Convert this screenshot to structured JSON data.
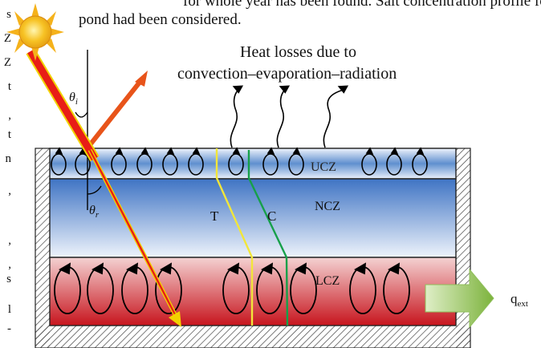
{
  "top_text": {
    "line1": "for whole year has been found. Salt concentration profile for",
    "line2": "pond had been considered."
  },
  "heat_losses": {
    "line1": "Heat losses due to",
    "line2": "convection–evaporation–radiation"
  },
  "zones": {
    "upper": "UCZ",
    "middle": "NCZ",
    "lower": "LCZ"
  },
  "profiles": {
    "temperature": "T",
    "concentration": "C"
  },
  "angles": {
    "incident": "θ",
    "incident_sub": "i",
    "refracted": "θ",
    "refracted_sub": "r"
  },
  "external_heat": {
    "symbol": "q",
    "subscript": "ext"
  },
  "left_margin_fragments": [
    "s",
    "Z",
    "Z",
    "t",
    ",",
    "t",
    "n",
    ",",
    ",",
    ",",
    "s",
    "l",
    "-"
  ],
  "colors": {
    "ucz": "#5f8fcf",
    "ncz_top": "#3f74c4",
    "ncz_bottom": "#eef3fb",
    "lcz_top": "#f4d2d2",
    "lcz_bottom": "#c7141d",
    "temperature_line": "#f2e63a",
    "concentration_line": "#17a04a",
    "sun": "#f7c325",
    "ray": "#e81e16",
    "ray_outline": "#f2d200",
    "arrow_out": "#7cb33c"
  }
}
